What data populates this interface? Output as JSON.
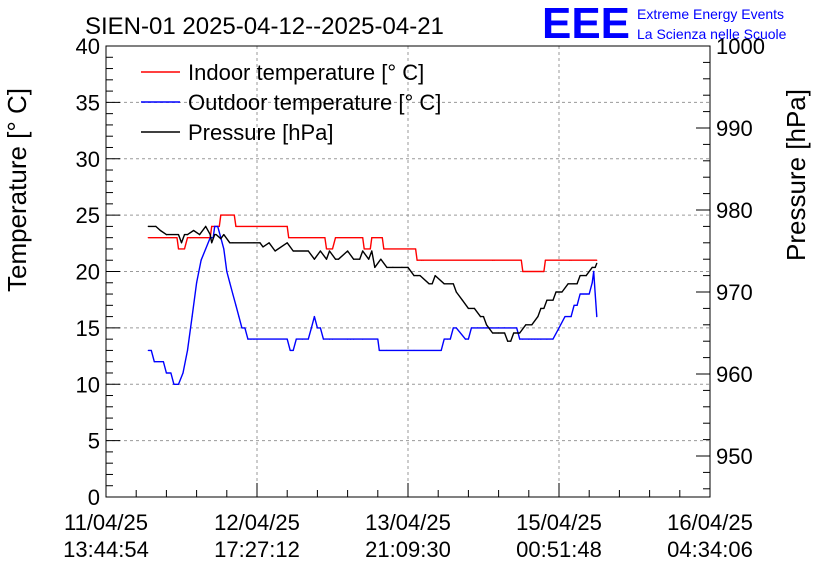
{
  "chart_data": {
    "type": "line",
    "title": "SIEN-01 2025-04-12--2025-04-21",
    "ylabel": "Temperature [° C]",
    "y2label": "Pressure [hPa]",
    "ylim": [
      0,
      40
    ],
    "y2lim": [
      945,
      1000
    ],
    "yticks": [
      "0",
      "5",
      "10",
      "15",
      "20",
      "25",
      "30",
      "35",
      "40"
    ],
    "y2ticks": [
      "950",
      "960",
      "970",
      "980",
      "990",
      "1000"
    ],
    "xticks": [
      {
        "date": "11/04/25",
        "time": "13:44:54",
        "t": 0
      },
      {
        "date": "12/04/25",
        "time": "17:27:12",
        "t": 100
      },
      {
        "date": "13/04/25",
        "time": "21:09:30",
        "t": 200
      },
      {
        "date": "15/04/25",
        "time": "00:51:48",
        "t": 300
      },
      {
        "date": "16/04/25",
        "time": "04:34:06",
        "t": 400
      }
    ],
    "x_minor_per_major": 5,
    "grid": true,
    "legend_position": "top-left",
    "series": [
      {
        "name": "Indoor temperature [° C]",
        "color": "#ff0000",
        "axis": "left",
        "x": [
          28,
          47,
          48,
          52,
          54,
          56,
          69,
          70,
          75,
          76,
          85,
          86,
          120,
          121,
          145,
          146,
          150,
          152,
          170,
          171,
          175,
          176,
          183,
          184,
          205,
          206,
          209,
          210,
          256,
          257,
          275,
          276,
          290,
          291,
          307,
          308,
          325
        ],
        "y": [
          23,
          23,
          22,
          22,
          23,
          23,
          23,
          24,
          24,
          25,
          25,
          24,
          24,
          23,
          23,
          22,
          22,
          23,
          23,
          22,
          22,
          23,
          23,
          22,
          22,
          21,
          21,
          21,
          21,
          21,
          21,
          20,
          20,
          21,
          21,
          21,
          21
        ]
      },
      {
        "name": "Outdoor temperature [° C]",
        "color": "#0000ff",
        "axis": "left",
        "x": [
          28,
          30,
          32,
          38,
          40,
          43,
          45,
          48,
          51,
          54,
          57,
          60,
          63,
          66,
          69,
          71,
          72,
          74,
          76,
          78,
          80,
          82,
          84,
          86,
          88,
          90,
          92,
          94,
          96,
          98,
          100,
          120,
          122,
          124,
          126,
          130,
          134,
          136,
          138,
          140,
          142,
          144,
          148,
          150,
          160,
          162,
          164,
          170,
          180,
          181,
          186,
          196,
          198,
          200,
          204,
          222,
          224,
          226,
          228,
          230,
          232,
          238,
          240,
          242,
          246,
          250,
          252,
          254,
          260,
          264,
          272,
          274,
          276,
          280,
          282,
          284,
          286,
          288,
          292,
          296,
          300,
          304,
          308,
          310,
          312,
          314,
          316,
          318,
          320,
          322,
          323,
          324,
          325
        ],
        "y": [
          13,
          13,
          12,
          12,
          11,
          11,
          10,
          10,
          11,
          13,
          16,
          19,
          21,
          22,
          23,
          23,
          24,
          24,
          23,
          22,
          20,
          19,
          18,
          17,
          16,
          15,
          15,
          14,
          14,
          14,
          14,
          14,
          13,
          13,
          14,
          14,
          14,
          15,
          16,
          15,
          15,
          14,
          14,
          14,
          14,
          14,
          14,
          14,
          14,
          13,
          13,
          13,
          13,
          13,
          13,
          13,
          14,
          14,
          14,
          15,
          15,
          14,
          14,
          15,
          15,
          15,
          15,
          15,
          15,
          15,
          15,
          14,
          14,
          14,
          14,
          14,
          14,
          14,
          14,
          14,
          15,
          16,
          16,
          17,
          17,
          18,
          18,
          18,
          18,
          19,
          20,
          18,
          16
        ]
      },
      {
        "name": "Pressure [hPa]",
        "color": "#000000",
        "axis": "right",
        "x": [
          28,
          33,
          36,
          40,
          48,
          50,
          52,
          54,
          58,
          62,
          66,
          69,
          70,
          72,
          73,
          76,
          78,
          82,
          84,
          94,
          98,
          102,
          104,
          108,
          112,
          120,
          124,
          134,
          138,
          142,
          146,
          148,
          152,
          154,
          160,
          164,
          168,
          170,
          174,
          176,
          178,
          182,
          186,
          190,
          196,
          200,
          204,
          206,
          208,
          214,
          216,
          218,
          224,
          230,
          232,
          236,
          240,
          244,
          248,
          250,
          252,
          256,
          260,
          264,
          266,
          268,
          270,
          274,
          278,
          282,
          286,
          288,
          290,
          292,
          296,
          298,
          302,
          306,
          310,
          312,
          314,
          318,
          322,
          324,
          325
        ],
        "y": [
          978,
          978,
          977.5,
          977,
          977,
          976,
          977,
          977,
          977.5,
          977,
          978,
          977,
          976,
          977,
          977,
          976.5,
          977,
          976,
          976,
          976,
          976,
          976,
          975.5,
          976,
          975,
          976,
          975,
          975,
          974,
          975,
          974,
          975,
          974,
          974,
          975,
          974,
          974,
          975,
          974,
          975,
          973,
          974,
          973,
          973,
          973,
          973,
          972,
          972,
          972,
          971,
          971,
          972,
          971,
          971,
          970,
          969,
          968,
          968,
          967,
          967,
          966,
          965,
          965,
          965,
          964,
          964,
          965,
          965,
          966,
          966,
          967,
          968,
          968,
          969,
          969,
          970,
          970,
          971,
          971,
          971,
          972,
          972,
          973,
          973,
          973.5
        ]
      }
    ]
  },
  "logo": {
    "mark": "EEE",
    "line1": "Extreme Energy Events",
    "line2": "La Scienza nelle Scuole"
  },
  "colors": {
    "indoor": "#ff0000",
    "outdoor": "#0000ff",
    "pressure": "#000000",
    "logo": "#0000ff"
  }
}
